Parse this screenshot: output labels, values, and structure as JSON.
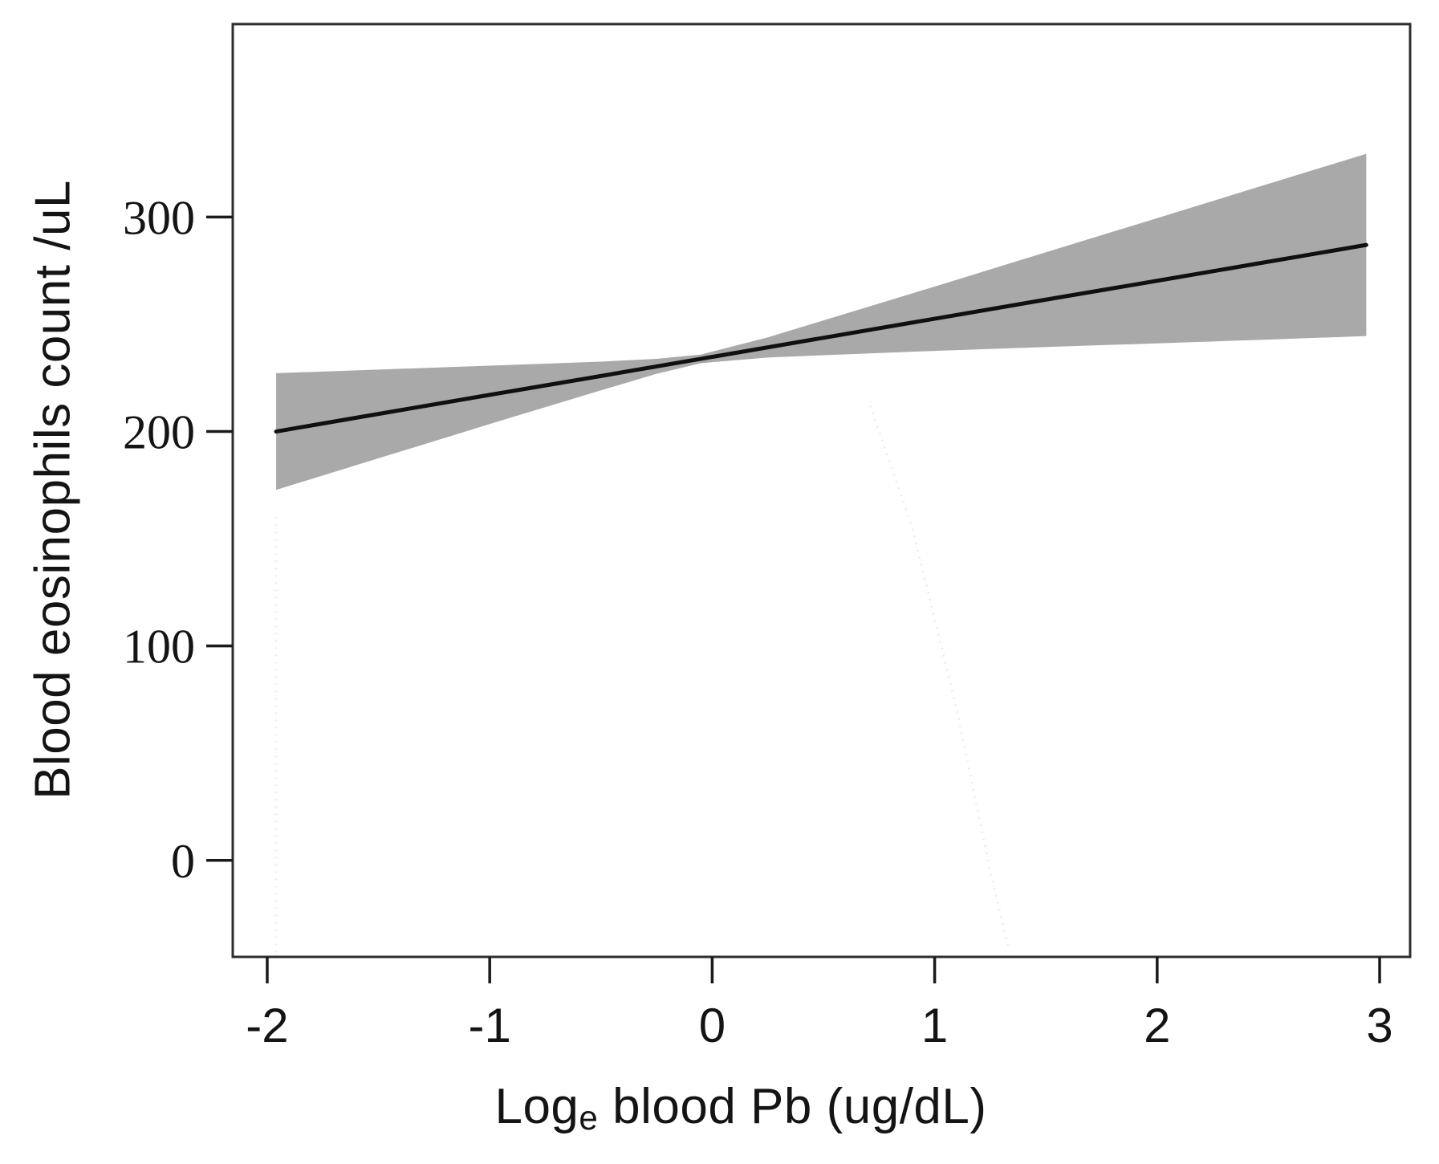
{
  "figure": {
    "background": "#ffffff",
    "axis_color": "#2e2e2e",
    "tick_color": "#1a1a1a",
    "text_color": "#141414"
  },
  "chart_data": {
    "type": "line",
    "title": "",
    "xlabel": {
      "prefix": "Log",
      "subscript": "e",
      "suffix": " blood Pb (ug/dL)"
    },
    "ylabel": "Blood eosinophils count /uL",
    "x_ticks": [
      -2,
      -1,
      0,
      1,
      2,
      3
    ],
    "x_tick_labels": [
      "-2",
      "-1",
      "0",
      "1",
      "2",
      "3"
    ],
    "y_ticks": [
      0,
      100,
      200,
      300
    ],
    "y_tick_labels": [
      "0",
      "100",
      "200",
      "300"
    ],
    "xlim": [
      -2.155,
      3.137
    ],
    "ylim": [
      -45,
      390
    ],
    "grid": false,
    "legend": null,
    "series": [
      {
        "name": "confidence-band",
        "type": "band",
        "color": "#a9a9a9",
        "x": [
          -1.96,
          -1.5,
          -1.0,
          -0.5,
          -0.25,
          -0.05,
          0.25,
          0.5,
          1.0,
          1.5,
          2.0,
          2.5,
          2.94
        ],
        "upper": [
          227.2,
          228.9,
          230.7,
          232.6,
          233.9,
          235.9,
          243.9,
          251.8,
          267.6,
          283.6,
          299.5,
          315.5,
          329.5
        ],
        "lower": [
          172.8,
          187.5,
          203.5,
          219.2,
          226.9,
          231.9,
          234.5,
          235.6,
          237.6,
          239.4,
          241.1,
          242.9,
          244.5
        ]
      },
      {
        "name": "fitted-line",
        "type": "line",
        "color": "#101010",
        "width": 5,
        "x": [
          -1.96,
          -1.5,
          -1.0,
          -0.5,
          0.0,
          0.5,
          1.0,
          1.5,
          2.0,
          2.5,
          2.94
        ],
        "y": [
          200.0,
          208.2,
          217.1,
          225.9,
          234.8,
          243.7,
          252.6,
          261.5,
          270.3,
          279.2,
          287.0
        ]
      }
    ],
    "faint_guides": [
      {
        "x": [
          -1.96,
          -1.96
        ],
        "y": [
          160,
          -44
        ]
      },
      {
        "x": [
          0.71,
          0.9,
          1.1,
          1.25,
          1.33
        ],
        "y": [
          212,
          155,
          70,
          -5,
          -40
        ]
      }
    ]
  }
}
